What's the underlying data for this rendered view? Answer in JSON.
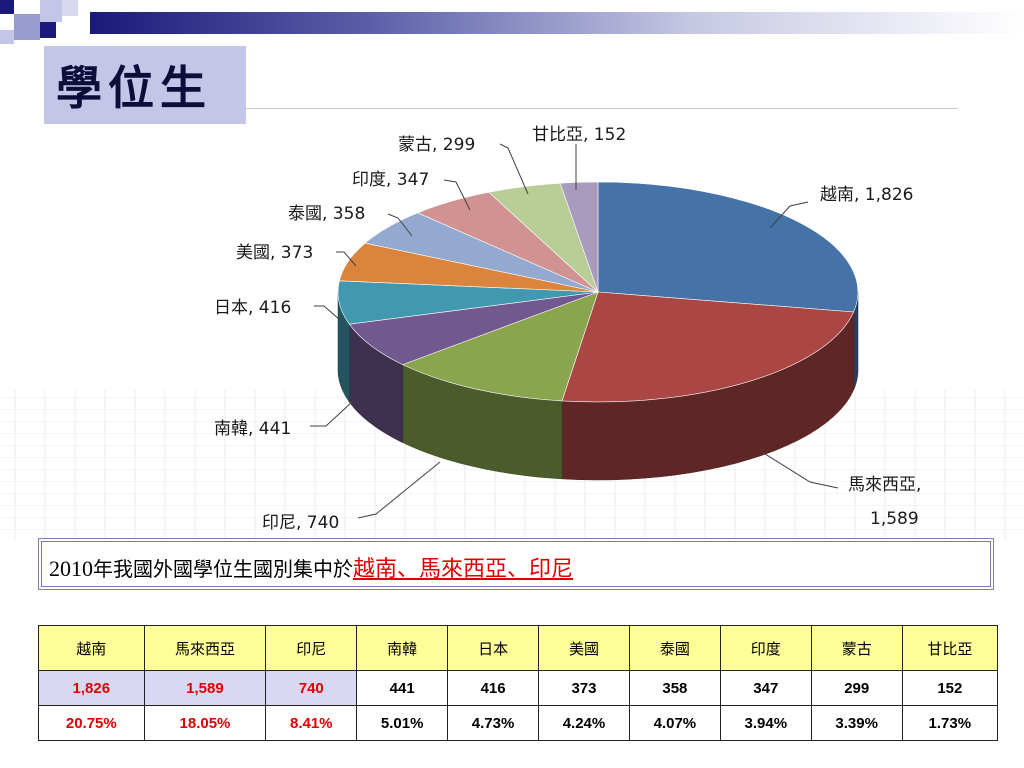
{
  "slide": {
    "title": "學位生",
    "note": {
      "prefix_year": "2010",
      "prefix_rest": "年我國外國學位生國別集中於",
      "highlight": "越南、馬來西亞、印尼"
    }
  },
  "colors": {
    "title_box": "#c4c6e8",
    "table_header": "#ffff99",
    "highlight_red": "#e00000",
    "highlight_bg": "#d8d8f4"
  },
  "chart_data": {
    "type": "pie",
    "style": "3d",
    "categories": [
      "越南",
      "馬來西亞",
      "印尼",
      "南韓",
      "日本",
      "美國",
      "泰國",
      "印度",
      "蒙古",
      "甘比亞"
    ],
    "values": [
      1826,
      1589,
      740,
      441,
      416,
      373,
      358,
      347,
      299,
      152
    ],
    "value_labels": [
      "1,826",
      "1,589",
      "740",
      "441",
      "416",
      "373",
      "358",
      "347",
      "299",
      "152"
    ],
    "colors": [
      "#4572a7",
      "#aa4643",
      "#89a54e",
      "#71588f",
      "#4198af",
      "#db843d",
      "#93a9cf",
      "#d19392",
      "#b9cd96",
      "#a99bbd"
    ],
    "label_placement": "outside with leader lines"
  },
  "table": {
    "headers": [
      "越南",
      "馬來西亞",
      "印尼",
      "南韓",
      "日本",
      "美國",
      "泰國",
      "印度",
      "蒙古",
      "甘比亞"
    ],
    "counts": [
      "1,826",
      "1,589",
      "740",
      "441",
      "416",
      "373",
      "358",
      "347",
      "299",
      "152"
    ],
    "percents": [
      "20.75%",
      "18.05%",
      "8.41%",
      "5.01%",
      "4.73%",
      "4.24%",
      "4.07%",
      "3.94%",
      "3.39%",
      "1.73%"
    ]
  }
}
